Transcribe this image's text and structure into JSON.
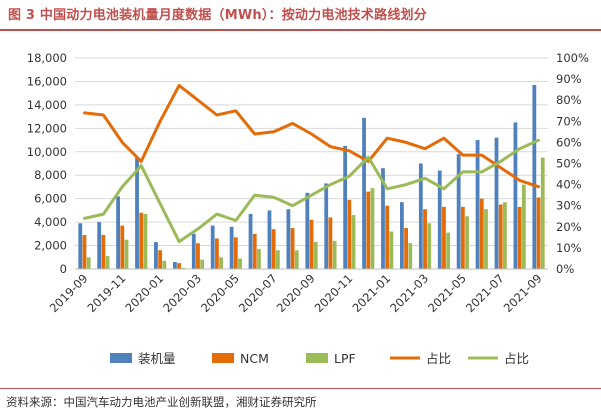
{
  "page": {
    "title": "图 3 中国动力电池装机量月度数据（MWh）：按动力电池技术路线划分",
    "source": "资料来源：中国汽车动力电池产业创新联盟，湘财证券研究所"
  },
  "chart_data": {
    "type": "bar",
    "title": "图 3 中国动力电池装机量月度数据（MWh）：按动力电池技术路线划分",
    "xlabel": "",
    "ylabel": "",
    "categories": [
      "2019-09",
      "2019-10",
      "2019-11",
      "2019-12",
      "2020-01",
      "2020-02",
      "2020-03",
      "2020-04",
      "2020-05",
      "2020-06",
      "2020-07",
      "2020-08",
      "2020-09",
      "2020-10",
      "2020-11",
      "2020-12",
      "2021-01",
      "2021-02",
      "2021-03",
      "2021-04",
      "2021-05",
      "2021-06",
      "2021-07",
      "2021-08",
      "2021-09"
    ],
    "x_tick_labels": [
      "2019-09",
      "2019-11",
      "2020-01",
      "2020-03",
      "2020-05",
      "2020-07",
      "2020-09",
      "2020-11",
      "2021-01",
      "2021-03",
      "2021-05",
      "2021-07",
      "2021-09"
    ],
    "y_left": {
      "range": [
        0,
        18000
      ],
      "ticks": [
        "0",
        "2,000",
        "4,000",
        "6,000",
        "8,000",
        "10,000",
        "12,000",
        "14,000",
        "16,000",
        "18,000"
      ]
    },
    "y_right": {
      "range": [
        0,
        100
      ],
      "ticks": [
        "0%",
        "10%",
        "20%",
        "30%",
        "40%",
        "50%",
        "60%",
        "70%",
        "80%",
        "90%",
        "100%"
      ]
    },
    "grid": true,
    "legend_position": "bottom",
    "series": [
      {
        "name": "装机量",
        "type": "bar",
        "axis": "left",
        "color": "#4F81BD",
        "values": [
          3900,
          4000,
          6200,
          9500,
          2300,
          600,
          3000,
          3700,
          3600,
          4700,
          5000,
          5100,
          6500,
          7300,
          10500,
          12900,
          8600,
          5700,
          9000,
          8400,
          9800,
          11000,
          11200,
          12500,
          15700
        ]
      },
      {
        "name": "NCM",
        "type": "bar",
        "axis": "left",
        "color": "#E36C09",
        "values": [
          2900,
          2900,
          3700,
          4800,
          1600,
          500,
          2200,
          2600,
          2700,
          3000,
          3400,
          3500,
          4200,
          4400,
          5900,
          6600,
          5400,
          3500,
          5100,
          5300,
          5300,
          6000,
          5500,
          5300,
          6100
        ]
      },
      {
        "name": "LPF",
        "type": "bar",
        "axis": "left",
        "color": "#9BBB59",
        "values": [
          1000,
          1100,
          2500,
          4700,
          700,
          100,
          800,
          1000,
          900,
          1700,
          1600,
          1600,
          2300,
          2400,
          4600,
          6900,
          3200,
          2200,
          3900,
          3100,
          4500,
          5100,
          5700,
          7200,
          9500
        ]
      },
      {
        "name": "占比",
        "type": "line",
        "axis": "right",
        "color": "#E36C09",
        "values": [
          74,
          73,
          60,
          51,
          70,
          87,
          80,
          73,
          75,
          64,
          65,
          69,
          64,
          58,
          56,
          51,
          62,
          60,
          57,
          62,
          54,
          54,
          48,
          42,
          39
        ]
      },
      {
        "name": "占比",
        "type": "line",
        "axis": "right",
        "color": "#9BBB59",
        "values": [
          24,
          26,
          39,
          49,
          31,
          13,
          19,
          26,
          23,
          35,
          34,
          30,
          35,
          40,
          44,
          53,
          38,
          40,
          43,
          38,
          46,
          46,
          51,
          57,
          61
        ]
      }
    ]
  }
}
